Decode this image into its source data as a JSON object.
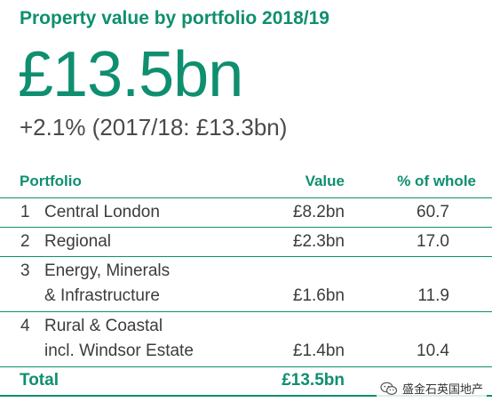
{
  "title": "Property value by portfolio 2018/19",
  "headline_value": "£13.5bn",
  "change_text": "+2.1% (2017/18: £13.3bn)",
  "table": {
    "headers": {
      "portfolio": "Portfolio",
      "value": "Value",
      "percent": "% of whole"
    },
    "rows": [
      {
        "num": "1",
        "line1": "Central London",
        "line2": "",
        "value": "£8.2bn",
        "percent": "60.7"
      },
      {
        "num": "2",
        "line1": "Regional",
        "line2": "",
        "value": "£2.3bn",
        "percent": "17.0"
      },
      {
        "num": "3",
        "line1": "Energy, Minerals",
        "line2": "& Infrastructure",
        "value": "£1.6bn",
        "percent": "11.9"
      },
      {
        "num": "4",
        "line1": "Rural & Coastal",
        "line2": "incl. Windsor Estate",
        "value": "£1.4bn",
        "percent": "10.4"
      }
    ],
    "total": {
      "label": "Total",
      "value": "£13.5bn"
    }
  },
  "watermark": {
    "icon": "wechat-icon",
    "text": "盛金石英国地产"
  },
  "colors": {
    "accent": "#0f8f6f",
    "text": "#3c3c3c"
  }
}
